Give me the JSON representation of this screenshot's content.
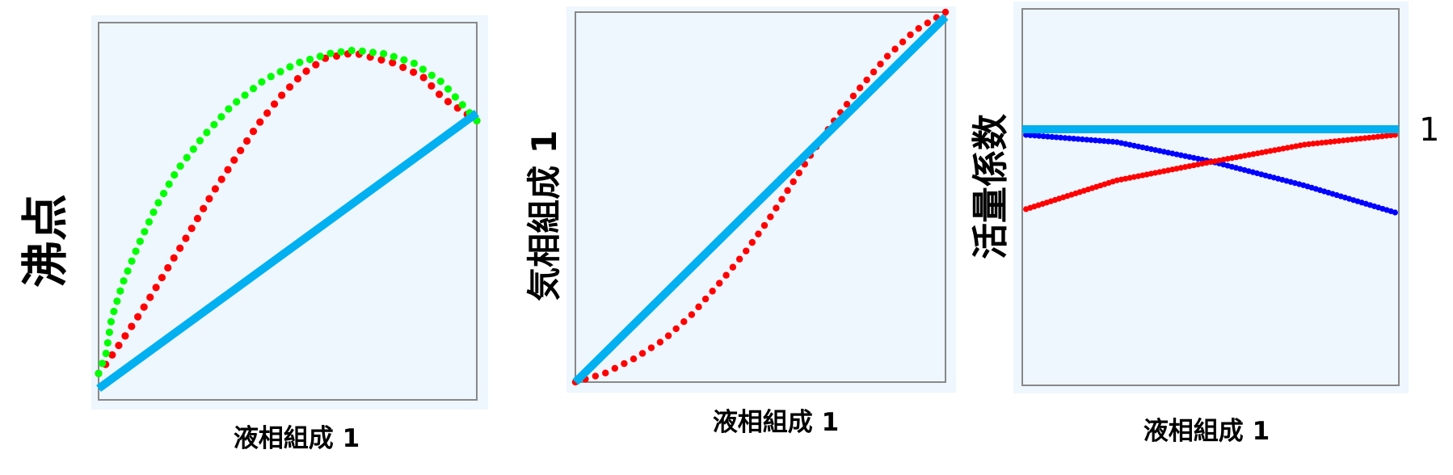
{
  "colors": {
    "panel_background": "#EEF6FE",
    "frame": "#888888",
    "ideal_line": "#00B0F0",
    "red_series": "#FF0000",
    "green_series": "#00FF00",
    "blue_series": "#0000FF"
  },
  "chart_data": [
    {
      "type": "scatter",
      "title": "",
      "xlabel": "液相組成 1",
      "ylabel": "沸点",
      "xlim": [
        0,
        1
      ],
      "ylim": [
        0,
        1
      ],
      "grid": false,
      "series": [
        {
          "style": "line",
          "color": "#00B0F0",
          "points": [
            [
              0.0,
              0.03
            ],
            [
              1.0,
              0.76
            ]
          ]
        },
        {
          "style": "dots",
          "color": "#FF0000",
          "points": [
            [
              0,
              0.07
            ],
            [
              0.02,
              0.096
            ],
            [
              0.06,
              0.154
            ],
            [
              0.1,
              0.214
            ],
            [
              0.14,
              0.278
            ],
            [
              0.18,
              0.345
            ],
            [
              0.22,
              0.41
            ],
            [
              0.3,
              0.546
            ],
            [
              0.36,
              0.638
            ],
            [
              0.42,
              0.728
            ],
            [
              0.48,
              0.803
            ],
            [
              0.54,
              0.865
            ],
            [
              0.6,
              0.906
            ],
            [
              0.675,
              0.92
            ],
            [
              0.78,
              0.893
            ],
            [
              0.857,
              0.857
            ],
            [
              0.91,
              0.8
            ],
            [
              1.0,
              0.74
            ]
          ]
        },
        {
          "style": "dots",
          "color": "#00FF00",
          "points": [
            [
              0,
              0.07
            ],
            [
              0.02,
              0.124
            ],
            [
              0.034,
              0.214
            ],
            [
              0.064,
              0.31
            ],
            [
              0.105,
              0.41
            ],
            [
              0.152,
              0.512
            ],
            [
              0.207,
              0.608
            ],
            [
              0.278,
              0.7
            ],
            [
              0.352,
              0.78
            ],
            [
              0.438,
              0.848
            ],
            [
              0.526,
              0.893
            ],
            [
              0.615,
              0.919
            ],
            [
              0.675,
              0.927
            ],
            [
              0.758,
              0.917
            ],
            [
              0.833,
              0.893
            ],
            [
              0.908,
              0.842
            ],
            [
              1.0,
              0.74
            ]
          ]
        }
      ]
    },
    {
      "type": "scatter",
      "title": "",
      "xlabel": "液相組成 1",
      "ylabel": "気相組成 1",
      "xlim": [
        0,
        1
      ],
      "ylim": [
        0,
        1
      ],
      "grid": false,
      "series": [
        {
          "style": "line",
          "color": "#00B0F0",
          "points": [
            [
              0.0,
              0.0
            ],
            [
              1.0,
              0.987
            ]
          ]
        },
        {
          "style": "dots",
          "color": "#FF0000",
          "points": [
            [
              0,
              0
            ],
            [
              0.08,
              0.024
            ],
            [
              0.16,
              0.064
            ],
            [
              0.24,
              0.115
            ],
            [
              0.316,
              0.184
            ],
            [
              0.396,
              0.275
            ],
            [
              0.458,
              0.35
            ],
            [
              0.52,
              0.436
            ],
            [
              0.578,
              0.525
            ],
            [
              0.636,
              0.614
            ],
            [
              0.698,
              0.705
            ],
            [
              0.76,
              0.785
            ],
            [
              0.84,
              0.878
            ],
            [
              0.916,
              0.949
            ],
            [
              1.0,
              1.0
            ]
          ]
        }
      ]
    },
    {
      "type": "scatter",
      "title": "",
      "xlabel": "液相組成 1",
      "ylabel": "活量係数",
      "xlim": [
        0,
        1
      ],
      "ylim": [
        0,
        1.47
      ],
      "yticks": [
        {
          "value": 1,
          "label": "1"
        }
      ],
      "grid": false,
      "series": [
        {
          "style": "line",
          "color": "#00B0F0",
          "points": [
            [
              0.0,
              1.0
            ],
            [
              1.0,
              1.0
            ]
          ]
        },
        {
          "style": "dots",
          "color": "#0000FF",
          "points": [
            [
              0.01,
              0.978
            ],
            [
              0.25,
              0.95
            ],
            [
              0.5,
              0.875
            ],
            [
              0.75,
              0.78
            ],
            [
              0.99,
              0.675
            ]
          ]
        },
        {
          "style": "dots",
          "color": "#FF0000",
          "points": [
            [
              0.01,
              0.688
            ],
            [
              0.25,
              0.8
            ],
            [
              0.5,
              0.872
            ],
            [
              0.75,
              0.94
            ],
            [
              0.99,
              0.978
            ]
          ]
        }
      ]
    }
  ]
}
